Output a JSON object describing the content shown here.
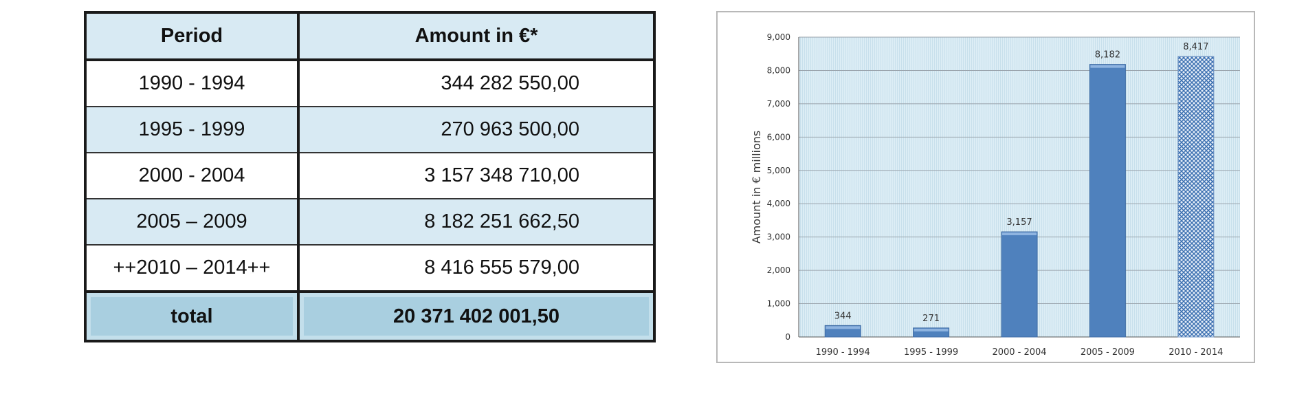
{
  "table": {
    "headers": {
      "period": "Period",
      "amount": "Amount in €*"
    },
    "rows": [
      {
        "period": "1990 - 1994",
        "amount": "344 282 550,00"
      },
      {
        "period": "1995 - 1999",
        "amount": "270 963 500,00"
      },
      {
        "period": "2000 - 2004",
        "amount": "3 157 348 710,00"
      },
      {
        "period": "2005 – 2009",
        "amount": "8 182 251 662,50"
      },
      {
        "period": "++2010 – 2014++",
        "amount": "8 416 555 579,00"
      }
    ],
    "total": {
      "label": "total",
      "amount": "20 371 402 001,50"
    }
  },
  "chart_data": {
    "type": "bar",
    "title": "",
    "xlabel": "",
    "ylabel": "Amount in € millions",
    "categories": [
      "1990 - 1994",
      "1995 - 1999",
      "2000 - 2004",
      "2005 - 2009",
      "2010 - 2014"
    ],
    "values": [
      344,
      271,
      3157,
      8182,
      8417
    ],
    "value_labels": [
      "344",
      "271",
      "3,157",
      "8,182",
      "8,417"
    ],
    "ylim": [
      0,
      9000
    ],
    "yticks": [
      0,
      1000,
      2000,
      3000,
      4000,
      5000,
      6000,
      7000,
      8000,
      9000
    ],
    "ytick_labels": [
      "0",
      "1,000",
      "2,000",
      "3,000",
      "4,000",
      "5,000",
      "6,000",
      "7,000",
      "8,000",
      "9,000"
    ],
    "grid": true,
    "colors": {
      "bar": "#4f81bd",
      "bar_highlight": "#8fb4e0",
      "bar_projected_pattern": "#3a6fb0",
      "plot_background": "#d9edf5",
      "grid": "#9aa4ad"
    },
    "projected_last_bar": true
  }
}
